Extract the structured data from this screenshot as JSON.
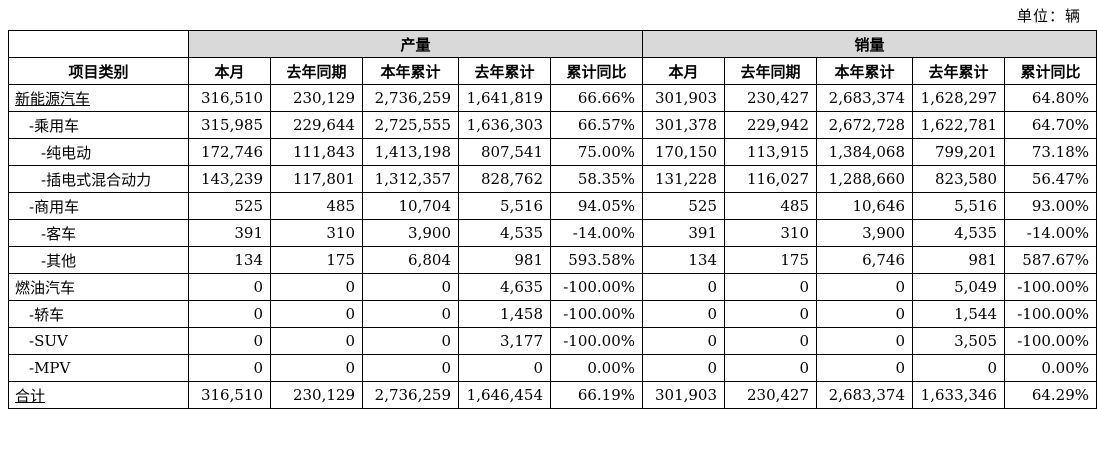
{
  "unit_label": "单位：辆",
  "table": {
    "category_header": "项目类别",
    "groups": {
      "production": "产量",
      "sales": "销量"
    },
    "sub_headers": [
      "本月",
      "去年同期",
      "本年累计",
      "去年累计",
      "累计同比"
    ],
    "rows": [
      {
        "label": "新能源汽车",
        "indent": 0,
        "underline": true,
        "production": [
          "316,510",
          "230,129",
          "2,736,259",
          "1,641,819",
          "66.66%"
        ],
        "sales": [
          "301,903",
          "230,427",
          "2,683,374",
          "1,628,297",
          "64.80%"
        ]
      },
      {
        "label": "-乘用车",
        "indent": 1,
        "underline": false,
        "production": [
          "315,985",
          "229,644",
          "2,725,555",
          "1,636,303",
          "66.57%"
        ],
        "sales": [
          "301,378",
          "229,942",
          "2,672,728",
          "1,622,781",
          "64.70%"
        ]
      },
      {
        "label": "-纯电动",
        "indent": 2,
        "underline": false,
        "production": [
          "172,746",
          "111,843",
          "1,413,198",
          "807,541",
          "75.00%"
        ],
        "sales": [
          "170,150",
          "113,915",
          "1,384,068",
          "799,201",
          "73.18%"
        ]
      },
      {
        "label": "-插电式混合动力",
        "indent": 2,
        "underline": false,
        "production": [
          "143,239",
          "117,801",
          "1,312,357",
          "828,762",
          "58.35%"
        ],
        "sales": [
          "131,228",
          "116,027",
          "1,288,660",
          "823,580",
          "56.47%"
        ]
      },
      {
        "label": "-商用车",
        "indent": 1,
        "underline": false,
        "production": [
          "525",
          "485",
          "10,704",
          "5,516",
          "94.05%"
        ],
        "sales": [
          "525",
          "485",
          "10,646",
          "5,516",
          "93.00%"
        ]
      },
      {
        "label": "-客车",
        "indent": 2,
        "underline": false,
        "production": [
          "391",
          "310",
          "3,900",
          "4,535",
          "-14.00%"
        ],
        "sales": [
          "391",
          "310",
          "3,900",
          "4,535",
          "-14.00%"
        ]
      },
      {
        "label": "-其他",
        "indent": 2,
        "underline": false,
        "production": [
          "134",
          "175",
          "6,804",
          "981",
          "593.58%"
        ],
        "sales": [
          "134",
          "175",
          "6,746",
          "981",
          "587.67%"
        ]
      },
      {
        "label": "燃油汽车",
        "indent": 0,
        "underline": false,
        "production": [
          "0",
          "0",
          "0",
          "4,635",
          "-100.00%"
        ],
        "sales": [
          "0",
          "0",
          "0",
          "5,049",
          "-100.00%"
        ]
      },
      {
        "label": "-轿车",
        "indent": 1,
        "underline": false,
        "production": [
          "0",
          "0",
          "0",
          "1,458",
          "-100.00%"
        ],
        "sales": [
          "0",
          "0",
          "0",
          "1,544",
          "-100.00%"
        ]
      },
      {
        "label": "-SUV",
        "indent": 1,
        "underline": false,
        "production": [
          "0",
          "0",
          "0",
          "3,177",
          "-100.00%"
        ],
        "sales": [
          "0",
          "0",
          "0",
          "3,505",
          "-100.00%"
        ]
      },
      {
        "label": "-MPV",
        "indent": 1,
        "underline": false,
        "production": [
          "0",
          "0",
          "0",
          "0",
          "0.00%"
        ],
        "sales": [
          "0",
          "0",
          "0",
          "0",
          "0.00%"
        ]
      },
      {
        "label": "合计",
        "indent": 0,
        "underline": true,
        "production": [
          "316,510",
          "230,129",
          "2,736,259",
          "1,646,454",
          "66.19%"
        ],
        "sales": [
          "301,903",
          "230,427",
          "2,683,374",
          "1,633,346",
          "64.29%"
        ]
      }
    ]
  }
}
